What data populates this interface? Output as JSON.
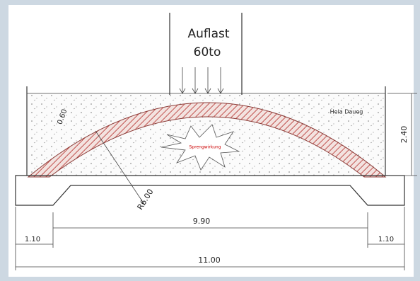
{
  "load": {
    "title": "Auflast",
    "amount": "60to"
  },
  "labels": {
    "fill": "Hela Daueg",
    "center": "Sprengwirkung",
    "thickness": "0.60",
    "radius": "R6.00"
  },
  "dimensions": {
    "height": "2.40",
    "span": "9.90",
    "left": "1.10",
    "right": "1.10",
    "total": "11.00"
  }
}
